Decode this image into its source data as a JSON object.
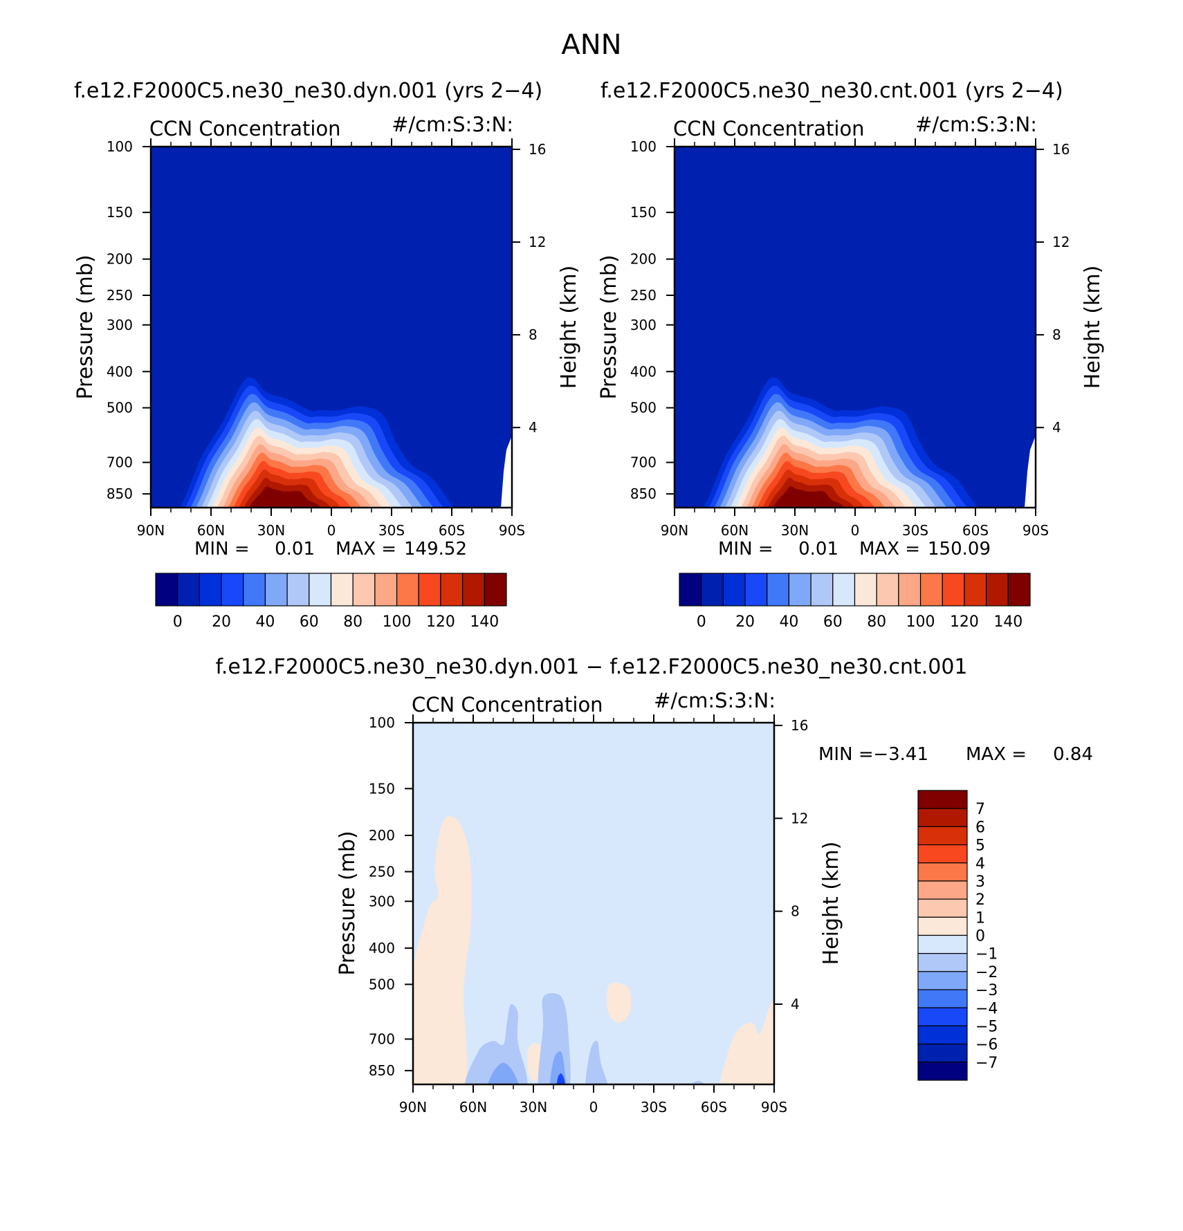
{
  "figure": {
    "title": "ANN",
    "top_left_title": "f.e12.F2000C5.ne30_ne30.dyn.001 (yrs 2−4)",
    "top_right_title": "f.e12.F2000C5.ne30_ne30.cnt.001 (yrs 2−4)",
    "diff_title": "f.e12.F2000C5.ne30_ne30.dyn.001 − f.e12.F2000C5.ne30_ne30.cnt.001",
    "colors": {
      "levels16": [
        "#000080",
        "#0020b0",
        "#0030d8",
        "#1848f8",
        "#4078f8",
        "#80a8f8",
        "#b0c8f8",
        "#d8e8fc",
        "#fce8d8",
        "#fcc8b0",
        "#fca888",
        "#fc7848",
        "#f84820",
        "#d83008",
        "#b01800",
        "#800000"
      ],
      "diff": [
        "#000080",
        "#0020b0",
        "#0030d8",
        "#1848f8",
        "#4078f8",
        "#80a8f8",
        "#b0c8f8",
        "#d8e8fc",
        "#fce8d8",
        "#fcc8b0",
        "#fca888",
        "#fc7848",
        "#f84820",
        "#d83008",
        "#b01800",
        "#800000"
      ]
    }
  },
  "chart_data": [
    {
      "id": "dyn",
      "type": "heatmap",
      "subtype": "pressure-latitude contour",
      "title": "f.e12.F2000C5.ne30_ne30.dyn.001 (yrs 2−4)",
      "left_label": "CCN Concentration",
      "right_label": "#/cm:S:3:N:",
      "ylabel": "Pressure (mb)",
      "y2label": "Height (km)",
      "x_ticks": [
        "90N",
        "60N",
        "30N",
        "0",
        "30S",
        "60S",
        "90S"
      ],
      "y_ticks": [
        "100",
        "150",
        "200",
        "250",
        "300",
        "400",
        "500",
        "700",
        "850"
      ],
      "y2_ticks": [
        "16",
        "12",
        "8",
        "4"
      ],
      "min_label": "MIN =",
      "min": "0.01",
      "max_label": "MAX =",
      "max": "149.52",
      "colorbar_labels": [
        "0",
        "20",
        "40",
        "60",
        "80",
        "100",
        "120",
        "140"
      ],
      "contour_levels": [
        0,
        10,
        20,
        30,
        40,
        50,
        60,
        70,
        80,
        90,
        100,
        110,
        120,
        130,
        140
      ],
      "ylim": [
        100,
        925
      ]
    },
    {
      "id": "cnt",
      "type": "heatmap",
      "subtype": "pressure-latitude contour",
      "title": "f.e12.F2000C5.ne30_ne30.cnt.001 (yrs 2−4)",
      "left_label": "CCN Concentration",
      "right_label": "#/cm:S:3:N:",
      "ylabel": "Pressure (mb)",
      "y2label": "Height (km)",
      "x_ticks": [
        "90N",
        "60N",
        "30N",
        "0",
        "30S",
        "60S",
        "90S"
      ],
      "y_ticks": [
        "100",
        "150",
        "200",
        "250",
        "300",
        "400",
        "500",
        "700",
        "850"
      ],
      "y2_ticks": [
        "16",
        "12",
        "8",
        "4"
      ],
      "min_label": "MIN =",
      "min": "0.01",
      "max_label": "MAX =",
      "max": "150.09",
      "colorbar_labels": [
        "0",
        "20",
        "40",
        "60",
        "80",
        "100",
        "120",
        "140"
      ],
      "contour_levels": [
        0,
        10,
        20,
        30,
        40,
        50,
        60,
        70,
        80,
        90,
        100,
        110,
        120,
        130,
        140
      ],
      "ylim": [
        100,
        925
      ]
    },
    {
      "id": "diff",
      "type": "heatmap",
      "subtype": "pressure-latitude contour difference",
      "title": "f.e12.F2000C5.ne30_ne30.dyn.001 − f.e12.F2000C5.ne30_ne30.cnt.001",
      "left_label": "CCN Concentration",
      "right_label": "#/cm:S:3:N:",
      "ylabel": "Pressure (mb)",
      "y2label": "Height (km)",
      "x_ticks": [
        "90N",
        "60N",
        "30N",
        "0",
        "30S",
        "60S",
        "90S"
      ],
      "y_ticks": [
        "100",
        "150",
        "200",
        "250",
        "300",
        "400",
        "500",
        "700",
        "850"
      ],
      "y2_ticks": [
        "16",
        "12",
        "8",
        "4"
      ],
      "min_label": "MIN =",
      "min": "−3.41",
      "max_label": "MAX =",
      "max": "0.84",
      "colorbar_labels": [
        "7",
        "6",
        "5",
        "4",
        "3",
        "2",
        "1",
        "0",
        "−1",
        "−2",
        "−3",
        "−4",
        "−5",
        "−6",
        "−7"
      ],
      "contour_levels": [
        -7,
        -6,
        -5,
        -4,
        -3,
        -2,
        -1,
        0,
        1,
        2,
        3,
        4,
        5,
        6,
        7
      ],
      "ylim": [
        100,
        925
      ]
    }
  ]
}
